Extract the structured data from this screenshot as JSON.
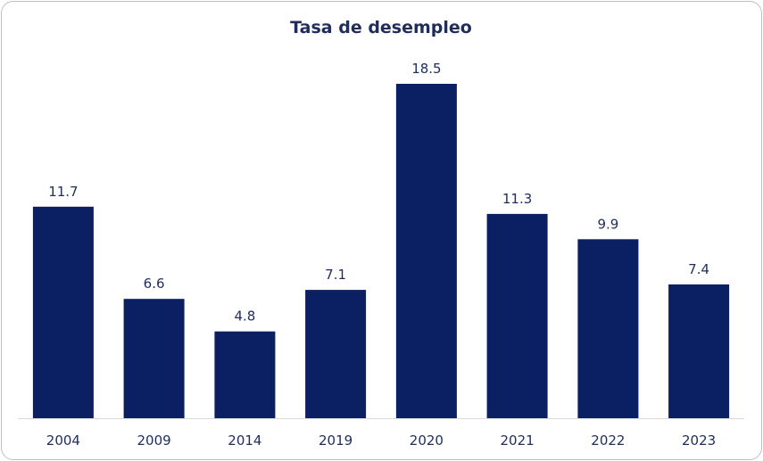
{
  "chart_data": {
    "type": "bar",
    "title": "Tasa de desempleo",
    "xlabel": "",
    "ylabel": "",
    "categories": [
      "2004",
      "2009",
      "2014",
      "2019",
      "2020",
      "2021",
      "2022",
      "2023"
    ],
    "values": [
      11.7,
      6.6,
      4.8,
      7.1,
      18.5,
      11.3,
      9.9,
      7.4
    ],
    "value_labels": [
      "11.7",
      "6.6",
      "4.8",
      "7.1",
      "18.5",
      "11.3",
      "9.9",
      "7.4"
    ],
    "ylim": [
      0,
      20
    ],
    "grid": false,
    "legend": "none",
    "colors": {
      "bar": "#0a2063",
      "text": "#1f2d5c",
      "axis": "#d9d9d9"
    }
  }
}
